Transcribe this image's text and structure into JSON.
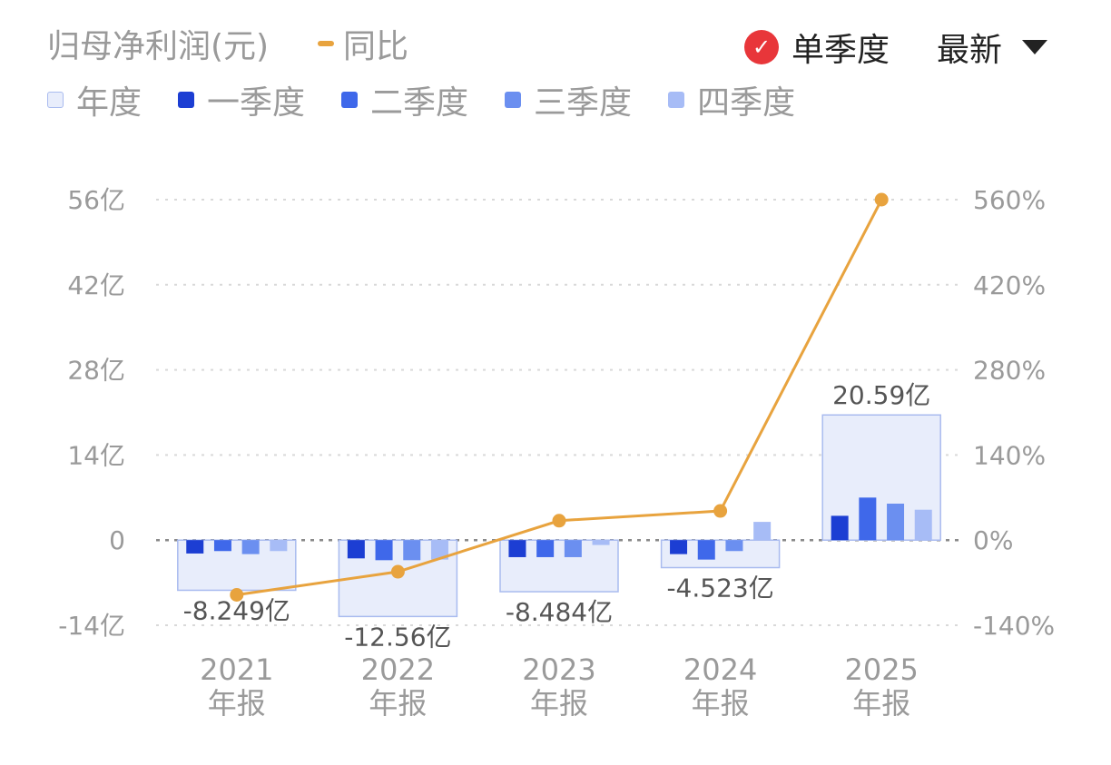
{
  "header": {
    "metric_title": "归母净利润(元)",
    "yoy_label": "同比",
    "toggle_label": "单季度",
    "toggle_checked": true,
    "period_select": "最新"
  },
  "legend": [
    {
      "label": "年度",
      "color": "#e8edfb"
    },
    {
      "label": "一季度",
      "color": "#1c3ed3"
    },
    {
      "label": "二季度",
      "color": "#3f68ea"
    },
    {
      "label": "三季度",
      "color": "#6b8ff0"
    },
    {
      "label": "四季度",
      "color": "#a7bcf6"
    }
  ],
  "colors": {
    "annual_fill": "#e8edfb",
    "annual_stroke": "#a9bbef",
    "q1": "#1c3ed3",
    "q2": "#3f68ea",
    "q3": "#6b8ff0",
    "q4": "#a7bcf6",
    "yoy": "#e8a33e",
    "grid": "#d9d9d9"
  },
  "chart_data": {
    "type": "bar",
    "categories": [
      [
        "2021",
        "年报"
      ],
      [
        "2022",
        "年报"
      ],
      [
        "2023",
        "年报"
      ],
      [
        "2024",
        "年报"
      ],
      [
        "2025",
        "年报"
      ]
    ],
    "annual": [
      -8.249,
      -12.56,
      -8.484,
      -4.523,
      20.59
    ],
    "annual_labels": [
      "-8.249亿",
      "-12.56亿",
      "-8.484亿",
      "-4.523亿",
      "20.59亿"
    ],
    "quarters": [
      [
        -2.2,
        -1.8,
        -2.3,
        -1.8
      ],
      [
        -3.0,
        -3.3,
        -3.3,
        -3.2
      ],
      [
        -2.8,
        -2.8,
        -2.8,
        -0.8
      ],
      [
        -2.3,
        -3.2,
        -1.8,
        3.0
      ],
      [
        4.0,
        7.0,
        6.0,
        5.0
      ]
    ],
    "yoy": [
      -90,
      -52,
      32,
      48,
      560
    ],
    "y_left": {
      "min": -14,
      "max": 56,
      "ticks": [
        56,
        42,
        28,
        14,
        0,
        -14
      ],
      "labels": [
        "56亿",
        "42亿",
        "28亿",
        "14亿",
        "0",
        "-14亿"
      ]
    },
    "y_right": {
      "min": -140,
      "max": 560,
      "ticks": [
        560,
        420,
        280,
        140,
        0,
        -140
      ],
      "labels": [
        "560%",
        "420%",
        "280%",
        "140%",
        "0%",
        "-140%"
      ]
    },
    "grid": true
  }
}
